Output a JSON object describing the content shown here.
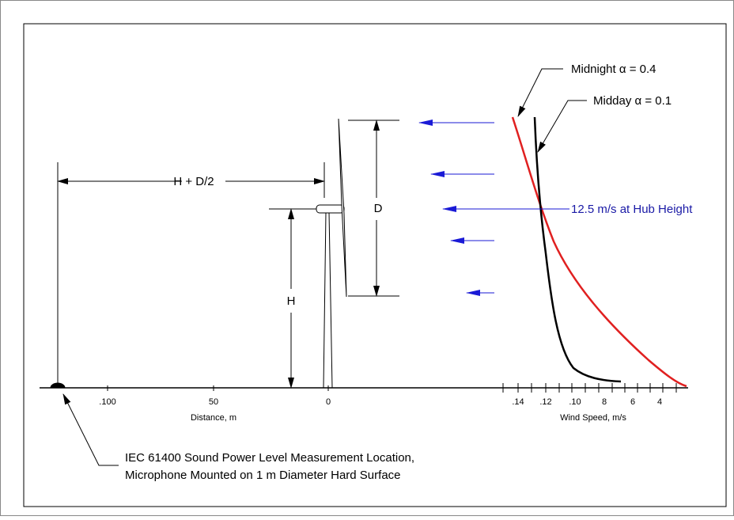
{
  "curves": {
    "midnight": "Midnight α = 0.4",
    "midday": "Midday α = 0.1"
  },
  "hub_speed": "12.5 m/s at Hub Height",
  "dimensions": {
    "total": "H + D/2",
    "diameter": "D",
    "height": "H"
  },
  "distance_axis": {
    "ticks": [
      ".100",
      "50",
      "0"
    ],
    "title": "Distance, m"
  },
  "wind_axis": {
    "ticks": [
      ".14",
      ".12",
      ".10",
      "8",
      "6",
      "4"
    ],
    "title": "Wind Speed, m/s"
  },
  "note": [
    "IEC 61400 Sound Power Level Measurement Location,",
    "Microphone Mounted on 1 m Diameter Hard Surface"
  ]
}
